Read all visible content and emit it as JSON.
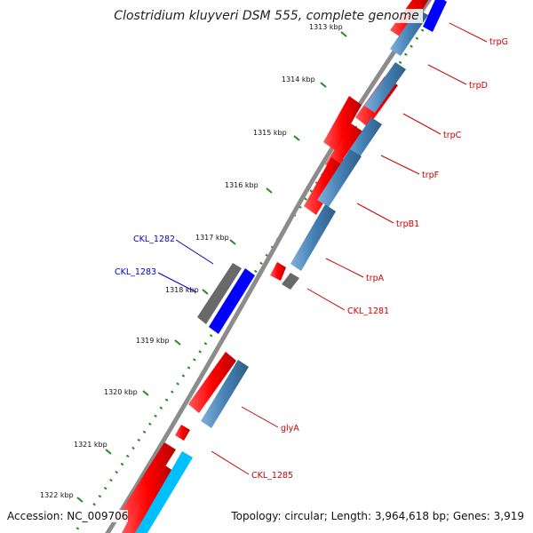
{
  "title": "Clostridium kluyveri DSM 555, complete genome",
  "footer": {
    "accession": "Accession: NC_009706",
    "topology": "Topology: circular; Length: 3,964,618 bp; Genes: 3,919"
  },
  "ticks": [
    "1313 kbp",
    "1314 kbp",
    "1315 kbp",
    "1316 kbp",
    "1317 kbp",
    "1318 kbp",
    "1319 kbp",
    "1320 kbp",
    "1321 kbp",
    "1322 kbp"
  ],
  "genes": [
    {
      "name": "trpG",
      "color": "#cc0000"
    },
    {
      "name": "trpD",
      "color": "#cc0000"
    },
    {
      "name": "trpC",
      "color": "#cc0000"
    },
    {
      "name": "trpF",
      "color": "#cc0000"
    },
    {
      "name": "trpB1",
      "color": "#cc0000"
    },
    {
      "name": "trpA",
      "color": "#cc0000"
    },
    {
      "name": "CKL_1281",
      "color": "#cc0000"
    },
    {
      "name": "CKL_1282",
      "color": "#0000cc"
    },
    {
      "name": "CKL_1283",
      "color": "#0000cc"
    },
    {
      "name": "glyA",
      "color": "#cc0000"
    },
    {
      "name": "CKL_1285",
      "color": "#cc0000"
    }
  ],
  "colors": {
    "cds_forward": "#ff0000",
    "orf_blue": "#4682b4",
    "orf_dark_blue": "#0000ff",
    "orf_cyan": "#00bfff",
    "other": "#808080",
    "backbone": "#8c8c8c",
    "tick_dots": "#228b22"
  }
}
